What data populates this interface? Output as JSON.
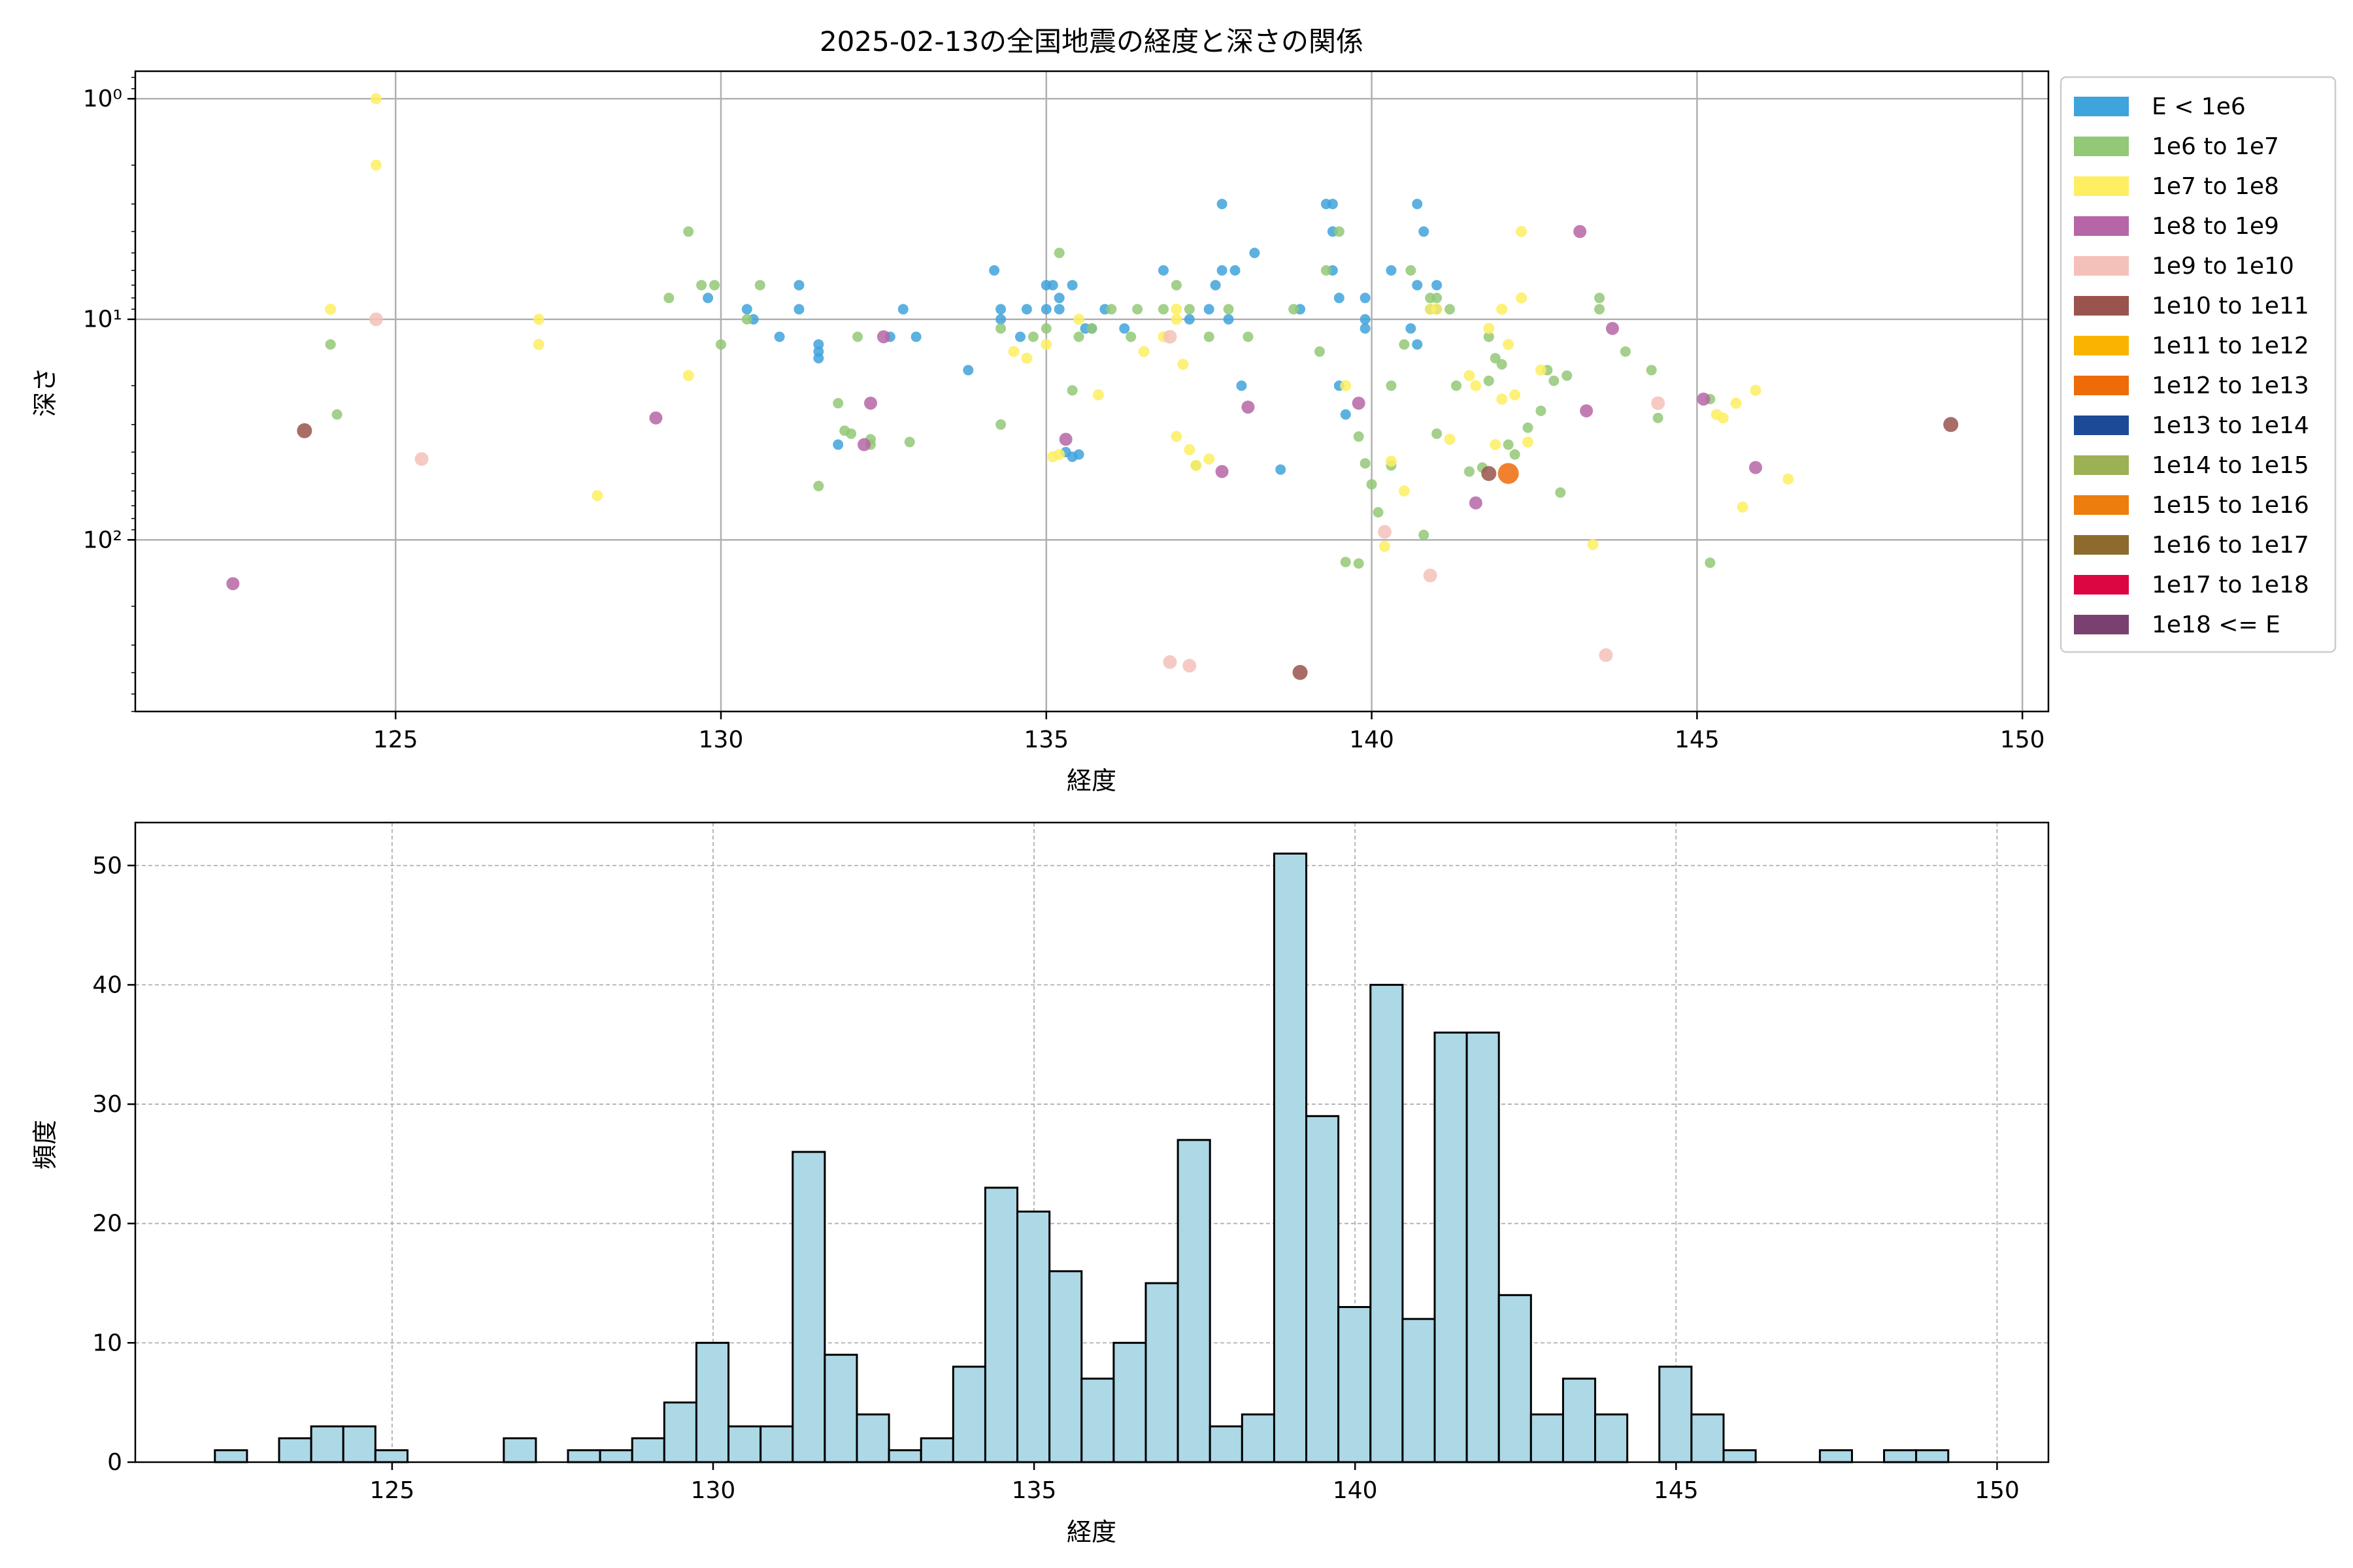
{
  "chart_data": [
    {
      "type": "scatter",
      "title": "2025-02-13の全国地震の経度と深さの関係",
      "xlabel": "経度",
      "ylabel": "深さ",
      "xlim": [
        121,
        150.4
      ],
      "ylim": [
        600,
        0.75
      ],
      "yscale": "log-inverted",
      "xticks": [
        125,
        130,
        135,
        140,
        145,
        150
      ],
      "yticks": [
        {
          "value": 1,
          "label": "10⁰"
        },
        {
          "value": 10,
          "label": "10¹"
        },
        {
          "value": 100,
          "label": "10²"
        }
      ],
      "grid": true,
      "legend_position": "outside-right",
      "legend": [
        {
          "label": "E < 1e6",
          "color": "#3fa3dc"
        },
        {
          "label": "1e6 to 1e7",
          "color": "#93c876"
        },
        {
          "label": "1e7 to 1e8",
          "color": "#fdee62"
        },
        {
          "label": "1e8 to 1e9",
          "color": "#b666a6"
        },
        {
          "label": "1e9 to 1e10",
          "color": "#f4c1ba"
        },
        {
          "label": "1e10 to 1e11",
          "color": "#9a544e"
        },
        {
          "label": "1e11 to 1e12",
          "color": "#f8b400"
        },
        {
          "label": "1e12 to 1e13",
          "color": "#ee6b0a"
        },
        {
          "label": "1e13 to 1e14",
          "color": "#1c4a97"
        },
        {
          "label": "1e14 to 1e15",
          "color": "#9cb054"
        },
        {
          "label": "1e15 to 1e16",
          "color": "#ed7d0d"
        },
        {
          "label": "1e16 to 1e17",
          "color": "#8d6b2e"
        },
        {
          "label": "1e17 to 1e18",
          "color": "#dc0742"
        },
        {
          "label": "1e18 <= E",
          "color": "#7a406f"
        }
      ],
      "series": [
        {
          "class": 0,
          "points": [
            [
              129.8,
              8
            ],
            [
              130.4,
              9
            ],
            [
              130.5,
              10
            ],
            [
              130.9,
              12
            ],
            [
              131.2,
              9
            ],
            [
              131.2,
              7
            ],
            [
              131.5,
              13
            ],
            [
              131.5,
              14
            ],
            [
              131.5,
              15
            ],
            [
              131.8,
              37
            ],
            [
              132.6,
              12
            ],
            [
              132.8,
              9
            ],
            [
              133.0,
              12
            ],
            [
              133.8,
              17
            ],
            [
              134.2,
              6
            ],
            [
              134.3,
              9
            ],
            [
              134.3,
              10
            ],
            [
              134.6,
              12
            ],
            [
              134.7,
              9
            ],
            [
              135.0,
              9
            ],
            [
              135.0,
              7
            ],
            [
              135.1,
              7
            ],
            [
              135.2,
              9
            ],
            [
              135.2,
              8
            ],
            [
              135.4,
              7
            ],
            [
              135.3,
              40
            ],
            [
              135.4,
              42
            ],
            [
              135.5,
              41
            ],
            [
              135.6,
              11
            ],
            [
              135.7,
              11
            ],
            [
              135.9,
              9
            ],
            [
              136.2,
              11
            ],
            [
              136.8,
              6
            ],
            [
              137.2,
              10
            ],
            [
              137.5,
              9
            ],
            [
              137.6,
              7
            ],
            [
              137.7,
              6
            ],
            [
              137.7,
              3
            ],
            [
              137.8,
              10
            ],
            [
              137.9,
              6
            ],
            [
              138.2,
              5
            ],
            [
              138.0,
              20
            ],
            [
              138.6,
              48
            ],
            [
              138.9,
              9
            ],
            [
              139.3,
              3
            ],
            [
              139.4,
              3
            ],
            [
              139.4,
              6
            ],
            [
              139.4,
              4
            ],
            [
              139.5,
              8
            ],
            [
              139.5,
              20
            ],
            [
              139.6,
              27
            ],
            [
              139.9,
              8
            ],
            [
              139.9,
              10
            ],
            [
              139.9,
              11
            ],
            [
              140.3,
              6
            ],
            [
              140.6,
              11
            ],
            [
              140.7,
              7
            ],
            [
              140.7,
              13
            ],
            [
              140.7,
              3
            ],
            [
              140.8,
              4
            ],
            [
              140.9,
              9
            ],
            [
              141.0,
              9
            ],
            [
              141.0,
              7
            ]
          ]
        },
        {
          "class": 1,
          "points": [
            [
              124.0,
              13
            ],
            [
              124.1,
              27
            ],
            [
              129.2,
              8
            ],
            [
              129.5,
              4
            ],
            [
              129.7,
              7
            ],
            [
              129.9,
              7
            ],
            [
              130.0,
              13
            ],
            [
              130.4,
              10
            ],
            [
              130.6,
              7
            ],
            [
              131.5,
              57
            ],
            [
              131.8,
              24
            ],
            [
              131.9,
              32
            ],
            [
              132.0,
              33
            ],
            [
              132.1,
              12
            ],
            [
              132.3,
              37
            ],
            [
              132.3,
              35
            ],
            [
              132.9,
              36
            ],
            [
              134.3,
              30
            ],
            [
              134.3,
              11
            ],
            [
              134.8,
              12
            ],
            [
              135.0,
              11
            ],
            [
              135.2,
              5
            ],
            [
              135.4,
              21
            ],
            [
              135.5,
              12
            ],
            [
              135.7,
              11
            ],
            [
              136.0,
              9
            ],
            [
              136.3,
              12
            ],
            [
              136.4,
              9
            ],
            [
              136.8,
              9
            ],
            [
              137.0,
              7
            ],
            [
              137.2,
              9
            ],
            [
              137.3,
              46
            ],
            [
              137.5,
              12
            ],
            [
              137.8,
              9
            ],
            [
              138.1,
              12
            ],
            [
              138.8,
              9
            ],
            [
              139.2,
              14
            ],
            [
              139.3,
              6
            ],
            [
              139.5,
              4
            ],
            [
              139.6,
              126
            ],
            [
              139.8,
              128
            ],
            [
              139.8,
              34
            ],
            [
              139.9,
              45
            ],
            [
              140.0,
              56
            ],
            [
              140.1,
              75
            ],
            [
              140.3,
              20
            ],
            [
              140.3,
              46
            ],
            [
              140.5,
              13
            ],
            [
              140.6,
              6
            ],
            [
              140.8,
              95
            ],
            [
              140.9,
              8
            ],
            [
              141.0,
              8
            ],
            [
              141.0,
              33
            ],
            [
              141.2,
              9
            ],
            [
              141.3,
              20
            ],
            [
              141.5,
              49
            ],
            [
              141.7,
              47
            ],
            [
              141.8,
              19
            ],
            [
              141.8,
              12
            ],
            [
              141.9,
              15
            ],
            [
              142.0,
              16
            ],
            [
              142.1,
              37
            ],
            [
              142.2,
              41
            ],
            [
              142.4,
              31
            ],
            [
              142.6,
              26
            ],
            [
              142.8,
              19
            ],
            [
              142.9,
              61
            ],
            [
              142.7,
              17
            ],
            [
              143.0,
              18
            ],
            [
              143.5,
              8
            ],
            [
              143.5,
              9
            ],
            [
              143.9,
              14
            ],
            [
              144.3,
              17
            ],
            [
              144.4,
              28
            ],
            [
              145.2,
              127
            ],
            [
              145.2,
              23
            ]
          ]
        },
        {
          "class": 2,
          "points": [
            [
              124.0,
              9
            ],
            [
              124.7,
              1
            ],
            [
              124.7,
              2
            ],
            [
              127.2,
              10
            ],
            [
              127.2,
              13
            ],
            [
              128.1,
              63
            ],
            [
              129.5,
              18
            ],
            [
              134.5,
              14
            ],
            [
              134.7,
              15
            ],
            [
              135.0,
              13
            ],
            [
              135.1,
              42
            ],
            [
              135.2,
              41
            ],
            [
              135.5,
              10
            ],
            [
              135.8,
              22
            ],
            [
              136.5,
              14
            ],
            [
              136.8,
              12
            ],
            [
              137.0,
              10
            ],
            [
              137.0,
              9
            ],
            [
              137.0,
              34
            ],
            [
              137.1,
              16
            ],
            [
              137.2,
              39
            ],
            [
              137.3,
              46
            ],
            [
              137.5,
              43
            ],
            [
              139.6,
              20
            ],
            [
              140.2,
              107
            ],
            [
              140.3,
              44
            ],
            [
              140.5,
              60
            ],
            [
              140.9,
              9
            ],
            [
              141.0,
              9
            ],
            [
              141.2,
              35
            ],
            [
              141.5,
              18
            ],
            [
              141.6,
              20
            ],
            [
              141.8,
              11
            ],
            [
              141.9,
              37
            ],
            [
              142.0,
              23
            ],
            [
              142.0,
              9
            ],
            [
              142.1,
              13
            ],
            [
              142.2,
              22
            ],
            [
              142.3,
              4
            ],
            [
              142.3,
              8
            ],
            [
              142.4,
              36
            ],
            [
              142.6,
              17
            ],
            [
              143.4,
              105
            ],
            [
              145.3,
              27
            ],
            [
              145.4,
              28
            ],
            [
              145.6,
              24
            ],
            [
              145.7,
              71
            ],
            [
              145.9,
              21
            ],
            [
              146.4,
              53
            ]
          ]
        },
        {
          "class": 3,
          "points": [
            [
              122.5,
              158
            ],
            [
              129.0,
              28
            ],
            [
              132.2,
              37
            ],
            [
              132.3,
              24
            ],
            [
              132.5,
              12
            ],
            [
              135.3,
              35
            ],
            [
              137.7,
              49
            ],
            [
              138.1,
              25
            ],
            [
              139.8,
              24
            ],
            [
              141.6,
              68
            ],
            [
              143.2,
              4
            ],
            [
              143.3,
              26
            ],
            [
              143.7,
              11
            ],
            [
              145.1,
              23
            ],
            [
              145.9,
              47
            ]
          ]
        },
        {
          "class": 4,
          "points": [
            [
              124.7,
              10
            ],
            [
              125.4,
              43
            ],
            [
              136.9,
              12
            ],
            [
              136.9,
              358
            ],
            [
              137.2,
              372
            ],
            [
              140.2,
              92
            ],
            [
              140.9,
              145
            ],
            [
              143.6,
              333
            ],
            [
              144.4,
              24
            ]
          ]
        },
        {
          "class": 5,
          "points": [
            [
              123.6,
              32
            ],
            [
              141.8,
              50
            ],
            [
              148.9,
              30
            ],
            [
              138.9,
              399
            ]
          ]
        },
        {
          "class": 7,
          "points": [
            [
              142.1,
              50
            ]
          ]
        }
      ]
    },
    {
      "type": "bar",
      "xlabel": "経度",
      "ylabel": "頻度",
      "xlim": [
        121,
        150.8
      ],
      "ylim": [
        0,
        53.6
      ],
      "xticks": [
        125,
        130,
        135,
        140,
        145,
        150
      ],
      "yticks": [
        0,
        10,
        20,
        30,
        40,
        50
      ],
      "grid": true,
      "bar_color": "#add8e6",
      "edge_color": "#000000",
      "bin_start": 122.24,
      "bin_width": 0.5,
      "counts": [
        1,
        0,
        2,
        3,
        3,
        1,
        0,
        0,
        0,
        2,
        0,
        1,
        1,
        2,
        5,
        10,
        3,
        3,
        26,
        9,
        4,
        1,
        2,
        8,
        23,
        21,
        16,
        7,
        10,
        15,
        27,
        3,
        4,
        51,
        29,
        13,
        40,
        12,
        36,
        36,
        14,
        4,
        7,
        4,
        0,
        8,
        4,
        1,
        0,
        0,
        1,
        0,
        1,
        1
      ]
    }
  ]
}
